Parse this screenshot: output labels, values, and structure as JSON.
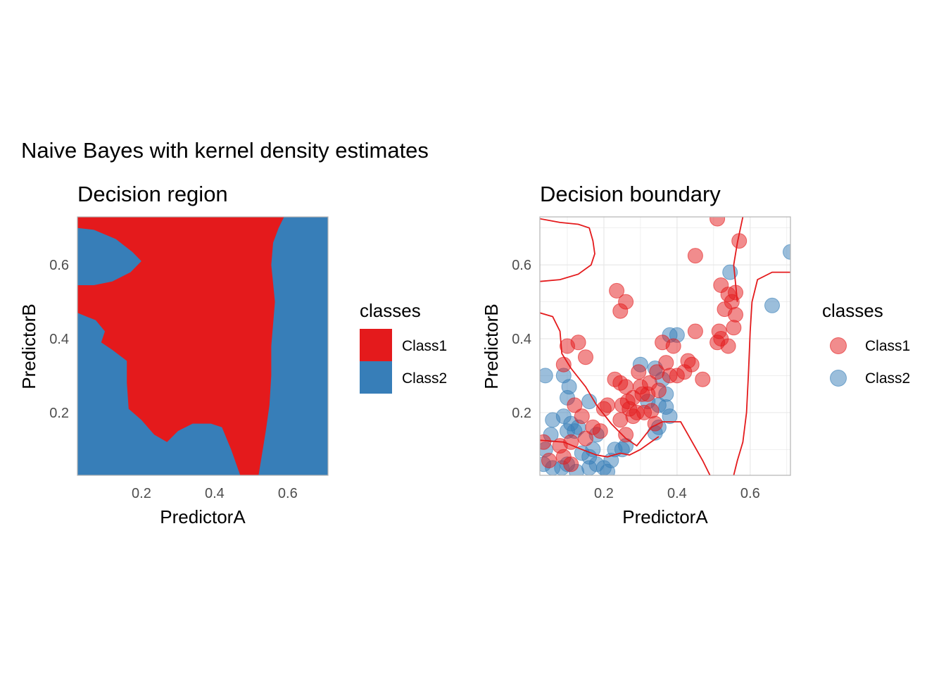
{
  "figure": {
    "title": "Naive Bayes with kernel density estimates"
  },
  "colors": {
    "class1": "#E41A1C",
    "class2": "#377EB8",
    "grid": "#e6e6e6",
    "panel_border": "#b3b3b3",
    "tick_text": "#4d4d4d"
  },
  "chart_data": [
    {
      "type": "heatmap",
      "title": "Decision region",
      "xlabel": "PredictorA",
      "ylabel": "PredictorB",
      "xlim": [
        0.025,
        0.71
      ],
      "ylim": [
        0.03,
        0.73
      ],
      "x_ticks": [
        0.2,
        0.4,
        0.6
      ],
      "y_ticks": [
        0.2,
        0.4,
        0.6
      ],
      "grid": false,
      "legend": {
        "title": "classes",
        "position": "right",
        "entries": [
          "Class1",
          "Class2"
        ]
      },
      "background_class": "Class2",
      "regions": [
        {
          "class": "Class1",
          "polygon": [
            [
              0.025,
              0.73
            ],
            [
              0.59,
              0.73
            ],
            [
              0.575,
              0.7
            ],
            [
              0.56,
              0.66
            ],
            [
              0.555,
              0.6
            ],
            [
              0.56,
              0.55
            ],
            [
              0.565,
              0.5
            ],
            [
              0.56,
              0.44
            ],
            [
              0.555,
              0.38
            ],
            [
              0.555,
              0.3
            ],
            [
              0.55,
              0.22
            ],
            [
              0.54,
              0.15
            ],
            [
              0.53,
              0.09
            ],
            [
              0.52,
              0.03
            ],
            [
              0.47,
              0.03
            ],
            [
              0.445,
              0.1
            ],
            [
              0.42,
              0.16
            ],
            [
              0.39,
              0.17
            ],
            [
              0.34,
              0.17
            ],
            [
              0.3,
              0.15
            ],
            [
              0.27,
              0.12
            ],
            [
              0.235,
              0.14
            ],
            [
              0.2,
              0.18
            ],
            [
              0.165,
              0.21
            ],
            [
              0.16,
              0.28
            ],
            [
              0.16,
              0.34
            ],
            [
              0.12,
              0.37
            ],
            [
              0.09,
              0.39
            ],
            [
              0.1,
              0.42
            ],
            [
              0.075,
              0.45
            ],
            [
              0.025,
              0.47
            ]
          ]
        },
        {
          "class": "Class2",
          "polygon": [
            [
              0.025,
              0.7
            ],
            [
              0.07,
              0.695
            ],
            [
              0.13,
              0.67
            ],
            [
              0.175,
              0.635
            ],
            [
              0.2,
              0.61
            ],
            [
              0.17,
              0.58
            ],
            [
              0.12,
              0.555
            ],
            [
              0.07,
              0.545
            ],
            [
              0.025,
              0.545
            ]
          ]
        }
      ]
    },
    {
      "type": "scatter",
      "title": "Decision boundary",
      "xlabel": "PredictorA",
      "ylabel": "PredictorB",
      "xlim": [
        0.025,
        0.71
      ],
      "ylim": [
        0.03,
        0.73
      ],
      "x_ticks": [
        0.2,
        0.4,
        0.6
      ],
      "y_ticks": [
        0.2,
        0.4,
        0.6
      ],
      "grid": true,
      "legend": {
        "title": "classes",
        "position": "right",
        "entries": [
          "Class1",
          "Class2"
        ]
      },
      "boundary": [
        [
          [
            0.025,
            0.725
          ],
          [
            0.08,
            0.715
          ],
          [
            0.13,
            0.71
          ],
          [
            0.16,
            0.7
          ],
          [
            0.17,
            0.665
          ],
          [
            0.175,
            0.63
          ],
          [
            0.165,
            0.6
          ],
          [
            0.13,
            0.575
          ],
          [
            0.08,
            0.56
          ],
          [
            0.025,
            0.555
          ]
        ],
        [
          [
            0.025,
            0.47
          ],
          [
            0.06,
            0.46
          ],
          [
            0.08,
            0.42
          ],
          [
            0.085,
            0.36
          ],
          [
            0.11,
            0.32
          ],
          [
            0.15,
            0.27
          ],
          [
            0.18,
            0.22
          ],
          [
            0.22,
            0.17
          ],
          [
            0.26,
            0.13
          ],
          [
            0.29,
            0.11
          ],
          [
            0.33,
            0.16
          ],
          [
            0.36,
            0.175
          ],
          [
            0.41,
            0.175
          ],
          [
            0.43,
            0.14
          ],
          [
            0.47,
            0.07
          ],
          [
            0.49,
            0.03
          ]
        ],
        [
          [
            0.71,
            0.58
          ],
          [
            0.66,
            0.58
          ],
          [
            0.62,
            0.56
          ],
          [
            0.605,
            0.5
          ],
          [
            0.6,
            0.42
          ],
          [
            0.595,
            0.3
          ],
          [
            0.59,
            0.2
          ],
          [
            0.58,
            0.12
          ],
          [
            0.565,
            0.07
          ],
          [
            0.555,
            0.03
          ]
        ],
        [
          [
            0.025,
            0.125
          ],
          [
            0.09,
            0.12
          ],
          [
            0.14,
            0.1
          ],
          [
            0.18,
            0.085
          ],
          [
            0.21,
            0.08
          ],
          [
            0.245,
            0.09
          ],
          [
            0.27,
            0.085
          ],
          [
            0.3,
            0.1
          ],
          [
            0.35,
            0.135
          ]
        ],
        [
          [
            0.58,
            0.73
          ],
          [
            0.565,
            0.66
          ],
          [
            0.555,
            0.6
          ],
          [
            0.56,
            0.55
          ],
          [
            0.565,
            0.5
          ]
        ]
      ],
      "series": [
        {
          "name": "Class1",
          "points": [
            [
              0.51,
              0.725
            ],
            [
              0.45,
              0.625
            ],
            [
              0.57,
              0.665
            ],
            [
              0.54,
              0.52
            ],
            [
              0.52,
              0.545
            ],
            [
              0.56,
              0.525
            ],
            [
              0.53,
              0.48
            ],
            [
              0.56,
              0.465
            ],
            [
              0.55,
              0.5
            ],
            [
              0.555,
              0.43
            ],
            [
              0.515,
              0.42
            ],
            [
              0.51,
              0.39
            ],
            [
              0.52,
              0.4
            ],
            [
              0.54,
              0.38
            ],
            [
              0.45,
              0.42
            ],
            [
              0.44,
              0.33
            ],
            [
              0.47,
              0.29
            ],
            [
              0.43,
              0.34
            ],
            [
              0.42,
              0.31
            ],
            [
              0.39,
              0.38
            ],
            [
              0.36,
              0.39
            ],
            [
              0.37,
              0.335
            ],
            [
              0.345,
              0.31
            ],
            [
              0.325,
              0.28
            ],
            [
              0.3,
              0.27
            ],
            [
              0.295,
              0.31
            ],
            [
              0.305,
              0.25
            ],
            [
              0.28,
              0.24
            ],
            [
              0.26,
              0.27
            ],
            [
              0.265,
              0.23
            ],
            [
              0.245,
              0.28
            ],
            [
              0.23,
              0.29
            ],
            [
              0.25,
              0.22
            ],
            [
              0.27,
              0.21
            ],
            [
              0.29,
              0.2
            ],
            [
              0.31,
              0.2
            ],
            [
              0.33,
              0.205
            ],
            [
              0.34,
              0.17
            ],
            [
              0.28,
              0.19
            ],
            [
              0.235,
              0.53
            ],
            [
              0.245,
              0.475
            ],
            [
              0.26,
              0.5
            ],
            [
              0.21,
              0.22
            ],
            [
              0.2,
              0.21
            ],
            [
              0.19,
              0.15
            ],
            [
              0.17,
              0.16
            ],
            [
              0.15,
              0.13
            ],
            [
              0.14,
              0.19
            ],
            [
              0.12,
              0.22
            ],
            [
              0.13,
              0.39
            ],
            [
              0.1,
              0.38
            ],
            [
              0.09,
              0.33
            ],
            [
              0.15,
              0.35
            ],
            [
              0.11,
              0.12
            ],
            [
              0.08,
              0.11
            ],
            [
              0.09,
              0.08
            ],
            [
              0.05,
              0.07
            ],
            [
              0.035,
              0.12
            ],
            [
              0.11,
              0.06
            ],
            [
              0.245,
              0.18
            ],
            [
              0.26,
              0.14
            ],
            [
              0.32,
              0.25
            ],
            [
              0.35,
              0.26
            ],
            [
              0.38,
              0.3
            ],
            [
              0.4,
              0.3
            ]
          ]
        },
        {
          "name": "Class2",
          "points": [
            [
              0.71,
              0.635
            ],
            [
              0.545,
              0.58
            ],
            [
              0.66,
              0.49
            ],
            [
              0.4,
              0.41
            ],
            [
              0.38,
              0.41
            ],
            [
              0.34,
              0.32
            ],
            [
              0.36,
              0.29
            ],
            [
              0.37,
              0.25
            ],
            [
              0.37,
              0.215
            ],
            [
              0.35,
              0.22
            ],
            [
              0.32,
              0.23
            ],
            [
              0.3,
              0.33
            ],
            [
              0.38,
              0.19
            ],
            [
              0.35,
              0.16
            ],
            [
              0.34,
              0.145
            ],
            [
              0.26,
              0.11
            ],
            [
              0.22,
              0.07
            ],
            [
              0.23,
              0.1
            ],
            [
              0.18,
              0.14
            ],
            [
              0.17,
              0.1
            ],
            [
              0.16,
              0.08
            ],
            [
              0.2,
              0.05
            ],
            [
              0.16,
              0.05
            ],
            [
              0.14,
              0.09
            ],
            [
              0.12,
              0.15
            ],
            [
              0.13,
              0.16
            ],
            [
              0.1,
              0.15
            ],
            [
              0.11,
              0.17
            ],
            [
              0.09,
              0.19
            ],
            [
              0.06,
              0.18
            ],
            [
              0.055,
              0.14
            ],
            [
              0.04,
              0.1
            ],
            [
              0.035,
              0.06
            ],
            [
              0.06,
              0.05
            ],
            [
              0.085,
              0.05
            ],
            [
              0.1,
              0.24
            ],
            [
              0.105,
              0.27
            ],
            [
              0.09,
              0.3
            ],
            [
              0.04,
              0.3
            ],
            [
              0.16,
              0.23
            ],
            [
              0.125,
              0.04
            ],
            [
              0.21,
              0.04
            ],
            [
              0.1,
              0.06
            ],
            [
              0.18,
              0.06
            ],
            [
              0.25,
              0.1
            ]
          ]
        }
      ]
    }
  ]
}
